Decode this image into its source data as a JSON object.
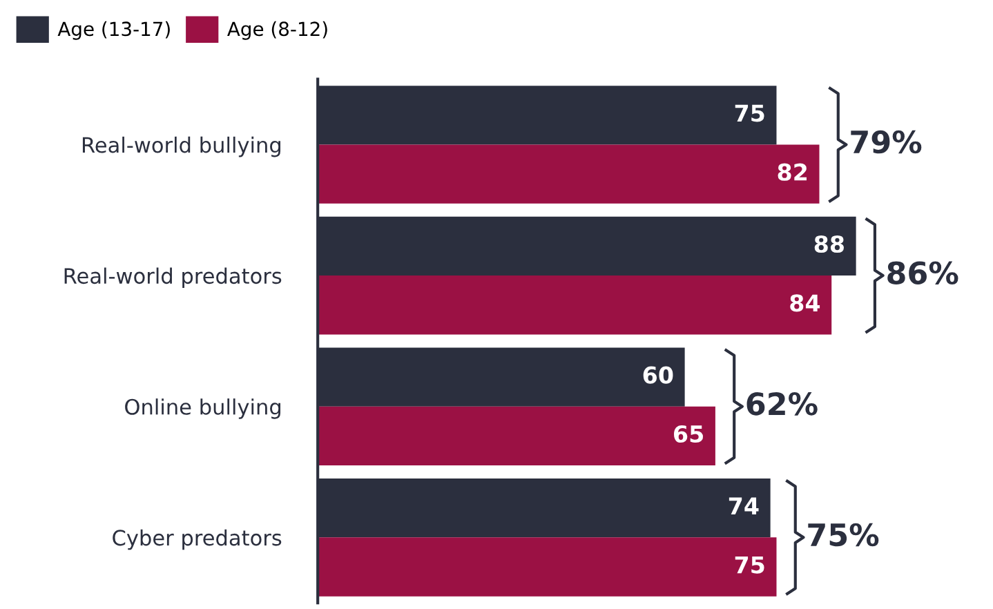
{
  "chart_data": {
    "type": "bar",
    "orientation": "horizontal",
    "categories": [
      "Real-world bullying",
      "Real-world predators",
      "Online bullying",
      "Cyber predators"
    ],
    "series": [
      {
        "name": "Age (13-17)",
        "color": "#2b2f3e",
        "values": [
          75,
          88,
          60,
          74
        ]
      },
      {
        "name": "Age (8-12)",
        "color": "#9b1144",
        "values": [
          82,
          84,
          65,
          75
        ]
      }
    ],
    "data_labels": true,
    "legend": "top left",
    "tick_labels": "y",
    "grid": false,
    "annotations": [
      "79%",
      "86%",
      "62%",
      "75%"
    ]
  }
}
